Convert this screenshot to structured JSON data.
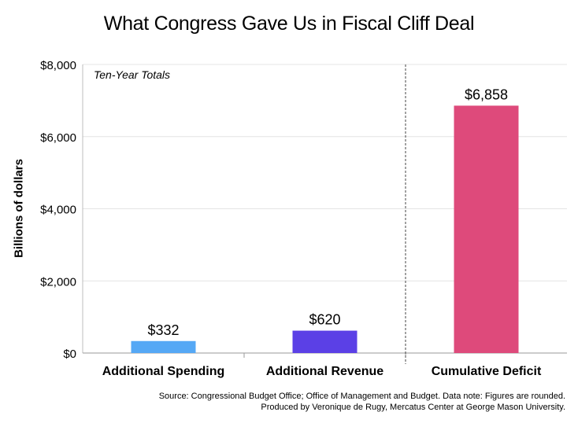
{
  "chart_data": {
    "type": "bar",
    "title": "What Congress Gave Us in Fiscal Cliff Deal",
    "subtitle": "Ten-Year Totals",
    "ylabel": "Billions of dollars",
    "xlabel": "",
    "categories": [
      "Additional Spending",
      "Additional Revenue",
      "Cumulative Deficit"
    ],
    "values": [
      332,
      620,
      6858
    ],
    "value_labels": [
      "$332",
      "$620",
      "$6,858"
    ],
    "colors": [
      "#55a8f5",
      "#5b40e6",
      "#de4a7b"
    ],
    "ylim": [
      0,
      8000
    ],
    "yticks": [
      0,
      2000,
      4000,
      6000,
      8000
    ],
    "ytick_labels": [
      "$0",
      "$2,000",
      "$4,000",
      "$6,000",
      "$8,000"
    ],
    "grid": true,
    "divider_after_category": 2
  },
  "source": {
    "line1": "Source:  Congressional Budget Office;  Office of Management and Budget. Data note: Figures are rounded.",
    "line2": "Produced by Veronique de Rugy, Mercatus Center at George Mason University."
  }
}
